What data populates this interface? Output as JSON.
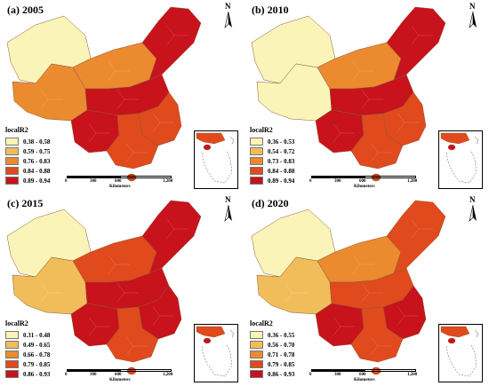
{
  "panels": [
    {
      "title": "(a) 2005",
      "legend": {
        "title": "localR2",
        "items": [
          {
            "label": "0.38 - 0.58",
            "color": "#fbf4b8"
          },
          {
            "label": "0.59 - 0.75",
            "color": "#f1bd5a"
          },
          {
            "label": "0.76 - 0.83",
            "color": "#ec8a30"
          },
          {
            "label": "0.84 - 0.88",
            "color": "#e04a1c"
          },
          {
            "label": "0.89 - 0.94",
            "color": "#c8121c"
          }
        ]
      },
      "regions": {
        "northwest": 0,
        "tibet": 2,
        "north": 2,
        "center": 4,
        "northeast": 4,
        "east": 3,
        "south": 3,
        "southwest": 4
      }
    },
    {
      "title": "(b) 2010",
      "legend": {
        "title": "localR2",
        "items": [
          {
            "label": "0.36 - 0.53",
            "color": "#fbf4b8"
          },
          {
            "label": "0.54 - 0.72",
            "color": "#f1bd5a"
          },
          {
            "label": "0.73 - 0.83",
            "color": "#ec8a30"
          },
          {
            "label": "0.84 - 0.88",
            "color": "#e04a1c"
          },
          {
            "label": "0.89 - 0.94",
            "color": "#c8121c"
          }
        ]
      },
      "regions": {
        "northwest": 0,
        "tibet": 0,
        "north": 2,
        "center": 4,
        "northeast": 4,
        "east": 3,
        "south": 3,
        "southwest": 4
      }
    },
    {
      "title": "(c) 2015",
      "legend": {
        "title": "localR2",
        "items": [
          {
            "label": "0.31 - 0.48",
            "color": "#fbf4b8"
          },
          {
            "label": "0.49 - 0.65",
            "color": "#f1bd5a"
          },
          {
            "label": "0.66 - 0.78",
            "color": "#ec8a30"
          },
          {
            "label": "0.79 - 0.85",
            "color": "#e04a1c"
          },
          {
            "label": "0.86 - 0.93",
            "color": "#c8121c"
          }
        ]
      },
      "regions": {
        "northwest": 0,
        "tibet": 1,
        "north": 3,
        "center": 4,
        "northeast": 4,
        "east": 4,
        "south": 3,
        "southwest": 4
      }
    },
    {
      "title": "(d) 2020",
      "legend": {
        "title": "localR2",
        "items": [
          {
            "label": "0.36 - 0.55",
            "color": "#fbf4b8"
          },
          {
            "label": "0.56 - 0.70",
            "color": "#f1bd5a"
          },
          {
            "label": "0.71 - 0.78",
            "color": "#ec8a30"
          },
          {
            "label": "0.79 - 0.85",
            "color": "#e04a1c"
          },
          {
            "label": "0.86 - 0.93",
            "color": "#c8121c"
          }
        ]
      },
      "regions": {
        "northwest": 0,
        "tibet": 1,
        "north": 2,
        "center": 3,
        "northeast": 3,
        "east": 4,
        "south": 3,
        "southwest": 4
      }
    }
  ],
  "north_label": "N",
  "scale": {
    "ticks": [
      "0",
      "300",
      "600",
      "1,200"
    ],
    "unit": "Kilometers"
  }
}
